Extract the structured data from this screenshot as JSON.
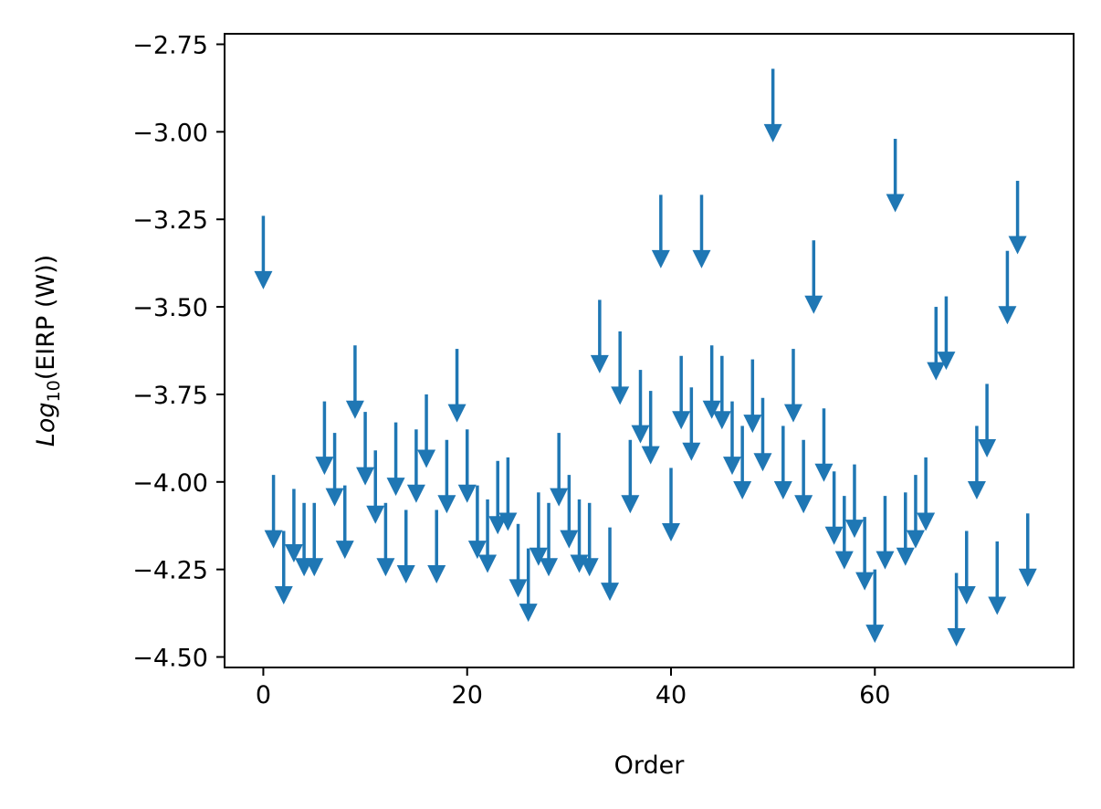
{
  "chart_data": {
    "type": "scatter",
    "marker": "upper-limit-arrow",
    "xlabel": "Order",
    "ylabel": {
      "prefix": "Log",
      "subscript": "10",
      "suffix": "(EIRP (W))"
    },
    "xlim": [
      -3.8,
      79.5
    ],
    "ylim": [
      -4.53,
      -2.72
    ],
    "xticks": [
      0,
      20,
      40,
      60
    ],
    "xtick_labels": [
      "0",
      "20",
      "40",
      "60"
    ],
    "yticks": [
      -2.75,
      -3.0,
      -3.25,
      -3.5,
      -3.75,
      -4.0,
      -4.25,
      -4.5
    ],
    "ytick_labels": [
      "−2.75",
      "−3.00",
      "−3.25",
      "−3.50",
      "−3.75",
      "−4.00",
      "−4.25",
      "−4.50"
    ],
    "grid": false,
    "arrow_length": 0.21,
    "x": [
      0,
      1,
      2,
      3,
      4,
      5,
      6,
      7,
      8,
      9,
      10,
      11,
      12,
      13,
      14,
      15,
      16,
      17,
      18,
      19,
      20,
      21,
      22,
      23,
      24,
      25,
      26,
      27,
      28,
      29,
      30,
      31,
      32,
      33,
      34,
      35,
      36,
      37,
      38,
      39,
      40,
      41,
      42,
      43,
      44,
      45,
      46,
      47,
      48,
      49,
      50,
      51,
      52,
      53,
      54,
      55,
      56,
      57,
      58,
      59,
      60,
      61,
      62,
      63,
      64,
      65,
      66,
      67,
      68,
      69,
      70,
      71,
      72,
      73,
      74,
      75
    ],
    "y": [
      -3.24,
      -3.98,
      -4.14,
      -4.02,
      -4.06,
      -4.06,
      -3.77,
      -3.86,
      -4.01,
      -3.61,
      -3.8,
      -3.91,
      -4.06,
      -3.83,
      -4.08,
      -3.85,
      -3.75,
      -4.08,
      -3.88,
      -3.62,
      -3.85,
      -4.01,
      -4.05,
      -3.94,
      -3.93,
      -4.12,
      -4.19,
      -4.03,
      -4.06,
      -3.86,
      -3.98,
      -4.05,
      -4.06,
      -3.48,
      -4.13,
      -3.57,
      -3.88,
      -3.68,
      -3.74,
      -3.18,
      -3.96,
      -3.64,
      -3.73,
      -3.18,
      -3.61,
      -3.64,
      -3.77,
      -3.84,
      -3.65,
      -3.76,
      -2.82,
      -3.84,
      -3.62,
      -3.88,
      -3.31,
      -3.79,
      -3.97,
      -4.04,
      -3.95,
      -4.1,
      -4.25,
      -4.04,
      -3.02,
      -4.03,
      -3.98,
      -3.93,
      -3.5,
      -3.47,
      -4.26,
      -4.14,
      -3.84,
      -3.72,
      -4.17,
      -3.34,
      -3.14,
      -4.09
    ]
  },
  "colors": {
    "series": "#1f77b4",
    "axes": "#000000",
    "background": "#ffffff"
  }
}
